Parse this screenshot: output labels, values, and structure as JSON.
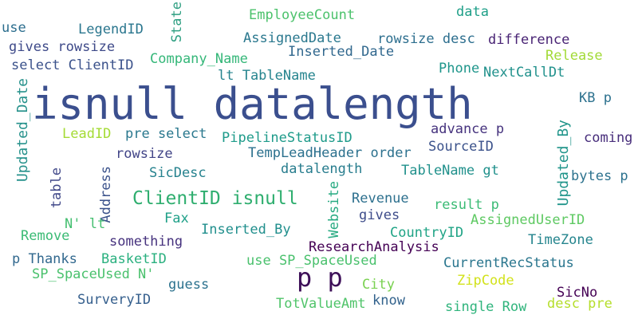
{
  "words": [
    {
      "text": "isnull datalength",
      "color": "#3b4f8e"
    },
    {
      "text": "p p",
      "color": "#3d0f58"
    },
    {
      "text": "ClientID isnull",
      "color": "#2fae6f"
    },
    {
      "text": "Updated_Date",
      "color": "#27928c"
    },
    {
      "text": "Updated_By",
      "color": "#21958b"
    },
    {
      "text": "use",
      "color": "#2c6e8e"
    },
    {
      "text": "LegendID",
      "color": "#2a768e"
    },
    {
      "text": "State",
      "color": "#2f9f82"
    },
    {
      "text": "EmployeeCount",
      "color": "#4cc26c"
    },
    {
      "text": "data",
      "color": "#1f9f88"
    },
    {
      "text": "gives rowsize",
      "color": "#3e4a89"
    },
    {
      "text": "AssignedDate",
      "color": "#2a788e"
    },
    {
      "text": "rowsize desc",
      "color": "#2c6e8e"
    },
    {
      "text": "difference",
      "color": "#482374"
    },
    {
      "text": "Inserted_Date",
      "color": "#31688e"
    },
    {
      "text": "Release",
      "color": "#a2da37"
    },
    {
      "text": "select ClientID",
      "color": "#3b528b"
    },
    {
      "text": "Company_Name",
      "color": "#35b779"
    },
    {
      "text": "Phone",
      "color": "#1f968b"
    },
    {
      "text": "NextCallDt",
      "color": "#21918c"
    },
    {
      "text": "lt TableName",
      "color": "#25848e"
    },
    {
      "text": "KB p",
      "color": "#2c718e"
    },
    {
      "text": "LeadID",
      "color": "#a5db36"
    },
    {
      "text": "pre select",
      "color": "#2a788e"
    },
    {
      "text": "advance p",
      "color": "#46337e"
    },
    {
      "text": "PipelineStatusID",
      "color": "#1e9b8a"
    },
    {
      "text": "coming",
      "color": "#472d7b"
    },
    {
      "text": "rowsize",
      "color": "#414487"
    },
    {
      "text": "TempLeadHeader order",
      "color": "#2c718e"
    },
    {
      "text": "SourceID",
      "color": "#3b528b"
    },
    {
      "text": "table",
      "color": "#3f4788"
    },
    {
      "text": "SicDesc",
      "color": "#26828e"
    },
    {
      "text": "datalength",
      "color": "#287d8e"
    },
    {
      "text": "TableName gt",
      "color": "#21918c"
    },
    {
      "text": "bytes p",
      "color": "#2c728e"
    },
    {
      "text": "Address",
      "color": "#3b528b"
    },
    {
      "text": "Website",
      "color": "#26aa81"
    },
    {
      "text": "Revenue",
      "color": "#2d708e"
    },
    {
      "text": "result p",
      "color": "#3bbb75"
    },
    {
      "text": "gives",
      "color": "#3e4c8a"
    },
    {
      "text": "N' lt",
      "color": "#44bf70"
    },
    {
      "text": "Fax",
      "color": "#1fa088"
    },
    {
      "text": "AssignedUserID",
      "color": "#5ec962"
    },
    {
      "text": "Inserted_By",
      "color": "#218f8d"
    },
    {
      "text": "CountryID",
      "color": "#20a486"
    },
    {
      "text": "Remove",
      "color": "#3bbb75"
    },
    {
      "text": "something",
      "color": "#46327e"
    },
    {
      "text": "ResearchAnalysis",
      "color": "#440154"
    },
    {
      "text": "TimeZone",
      "color": "#25858e"
    },
    {
      "text": "p Thanks",
      "color": "#31688e"
    },
    {
      "text": "BasketID",
      "color": "#2ab07f"
    },
    {
      "text": "use SP_SpaceUsed",
      "color": "#4ac16d"
    },
    {
      "text": "CurrentRecStatus",
      "color": "#2a768e"
    },
    {
      "text": "SP_SpaceUsed N'",
      "color": "#4ac16d"
    },
    {
      "text": "guess",
      "color": "#2c728e"
    },
    {
      "text": "City",
      "color": "#7ad151"
    },
    {
      "text": "ZipCode",
      "color": "#d2e21b"
    },
    {
      "text": "SicNo",
      "color": "#440154"
    },
    {
      "text": "SurveryID",
      "color": "#355f8d"
    },
    {
      "text": "TotValueAmt",
      "color": "#50c46a"
    },
    {
      "text": "know",
      "color": "#33638d"
    },
    {
      "text": "single Row",
      "color": "#2fb47c"
    },
    {
      "text": "desc pre",
      "color": "#b5de2b"
    }
  ]
}
